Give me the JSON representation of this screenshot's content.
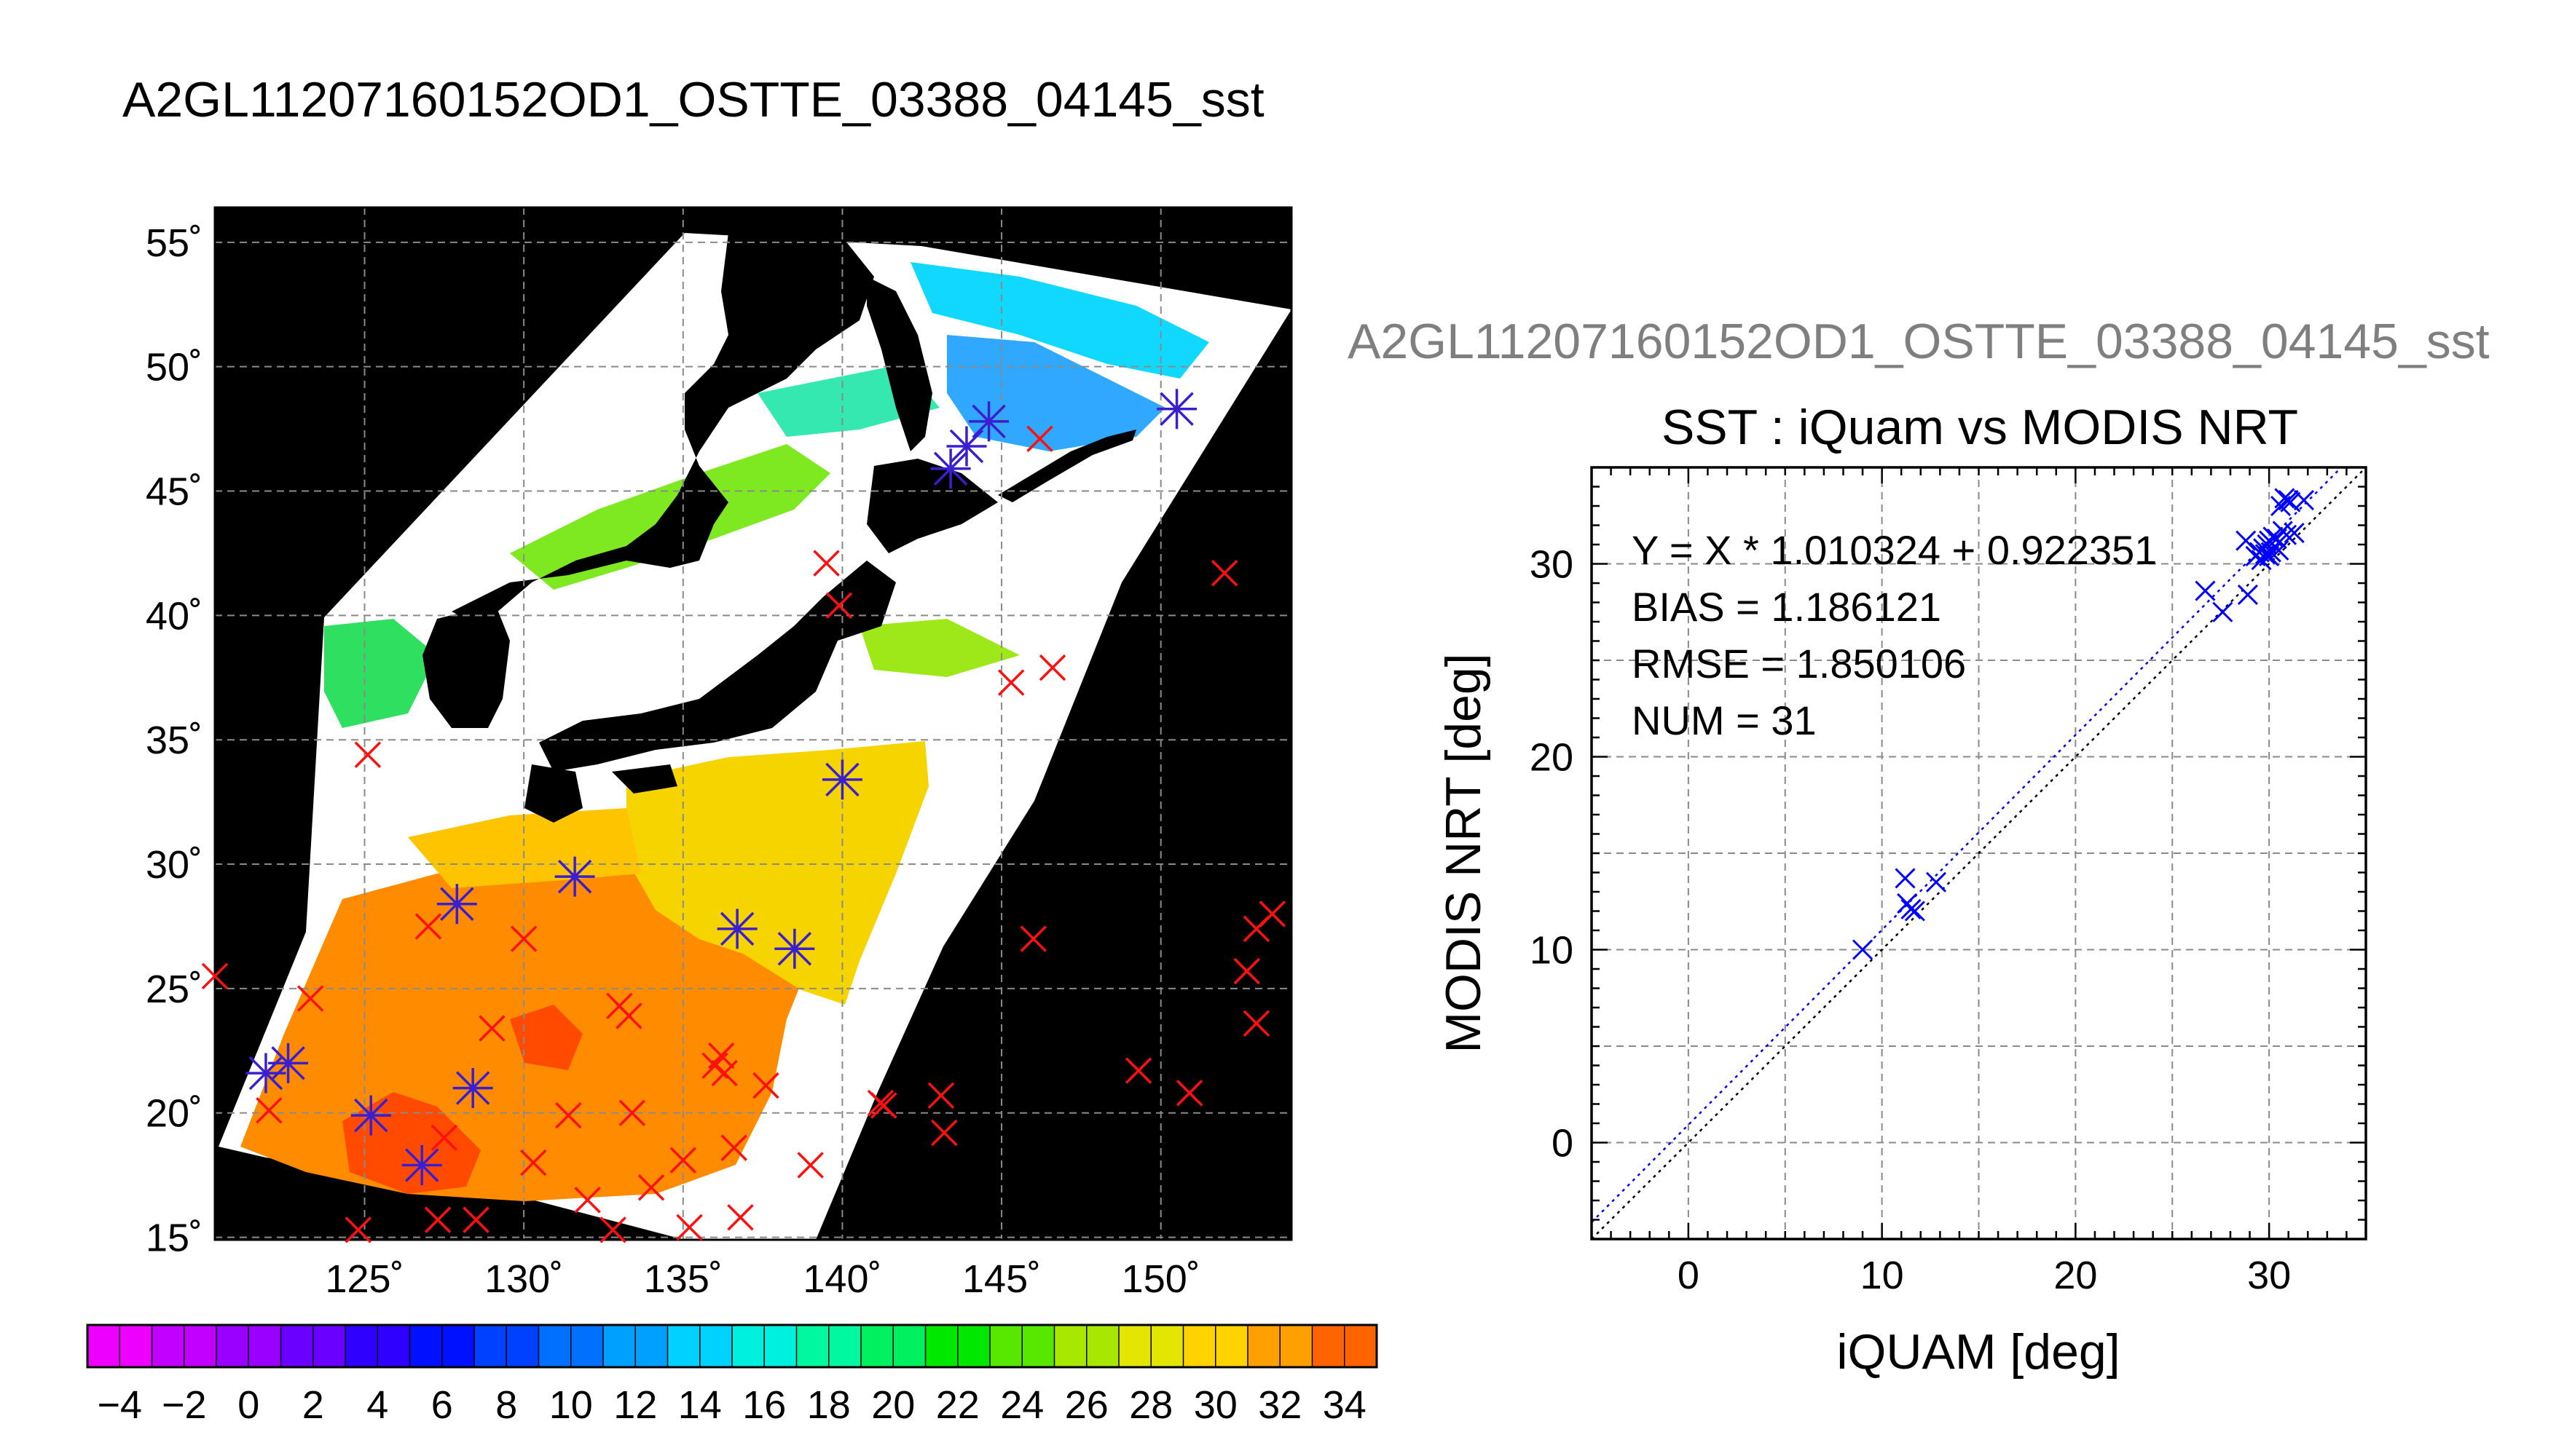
{
  "main_title": "A2GL11207160152OD1_OSTTE_03388_04145_sst",
  "sub_title": "A2GL11207160152OD1_OSTTE_03388_04145_sst",
  "chart_data": [
    {
      "type": "map",
      "title": "",
      "x_ticks": [
        "125˚",
        "130˚",
        "135˚",
        "140˚",
        "145˚",
        "150˚"
      ],
      "x_tick_values": [
        125,
        130,
        135,
        140,
        145,
        150
      ],
      "y_ticks": [
        "15˚",
        "20˚",
        "25˚",
        "30˚",
        "35˚",
        "40˚",
        "45˚",
        "50˚",
        "55˚"
      ],
      "y_tick_values": [
        15,
        20,
        25,
        30,
        35,
        40,
        45,
        50,
        55
      ],
      "xlim": [
        120.3,
        154.1
      ],
      "ylim": [
        14.9,
        56.4
      ],
      "grid": true,
      "colorbar": {
        "tick_labels": [
          "−4",
          "−2",
          "0",
          "2",
          "4",
          "6",
          "8",
          "10",
          "12",
          "14",
          "16",
          "18",
          "20",
          "22",
          "24",
          "26",
          "28",
          "30",
          "32",
          "34"
        ],
        "range": [
          -5,
          35
        ],
        "step": 2,
        "colors": [
          "#ee00ff",
          "#c200ff",
          "#9a00ff",
          "#6a00ff",
          "#3000ff",
          "#0011ff",
          "#0040ff",
          "#0070ff",
          "#00a0ff",
          "#00d2ff",
          "#00f0e0",
          "#00f8a0",
          "#00f060",
          "#00e800",
          "#58e800",
          "#a8e800",
          "#e2e600",
          "#ffd300",
          "#ffa000",
          "#ff6400",
          "#ff2a00"
        ]
      },
      "series": [
        {
          "name": "",
          "marker": "x",
          "color": "#ff1010",
          "points": [
            [
              120.3,
              25.5
            ],
            [
              122.0,
              20.1
            ],
            [
              123.3,
              24.6
            ],
            [
              125.1,
              34.4
            ],
            [
              124.8,
              15.3
            ],
            [
              127.0,
              27.5
            ],
            [
              127.3,
              15.7
            ],
            [
              127.5,
              19.0
            ],
            [
              128.5,
              15.7
            ],
            [
              129.0,
              23.4
            ],
            [
              130.0,
              27.0
            ],
            [
              130.3,
              18.0
            ],
            [
              131.4,
              19.9
            ],
            [
              132.0,
              16.5
            ],
            [
              132.8,
              15.3
            ],
            [
              133.0,
              24.3
            ],
            [
              133.3,
              23.9
            ],
            [
              133.4,
              20.0
            ],
            [
              134.0,
              17.0
            ],
            [
              135.0,
              18.1
            ],
            [
              135.2,
              15.4
            ],
            [
              136.0,
              21.9
            ],
            [
              136.2,
              22.3
            ],
            [
              136.3,
              21.6
            ],
            [
              136.6,
              18.6
            ],
            [
              136.8,
              15.8
            ],
            [
              137.6,
              21.1
            ],
            [
              139.0,
              17.9
            ],
            [
              139.5,
              42.1
            ],
            [
              139.9,
              40.4
            ],
            [
              141.2,
              20.4
            ],
            [
              141.3,
              20.3
            ],
            [
              143.1,
              20.7
            ],
            [
              143.2,
              19.2
            ],
            [
              145.3,
              37.3
            ],
            [
              146.0,
              27.0
            ],
            [
              146.2,
              47.1
            ],
            [
              146.6,
              37.9
            ],
            [
              149.3,
              21.7
            ],
            [
              150.9,
              20.8
            ],
            [
              152.0,
              41.7
            ],
            [
              152.7,
              25.7
            ],
            [
              153.0,
              23.6
            ],
            [
              153.0,
              27.4
            ],
            [
              153.5,
              28.0
            ]
          ]
        },
        {
          "name": "",
          "marker": "asterisk",
          "color": "#3a1fd0",
          "points": [
            [
              121.9,
              21.6
            ],
            [
              122.6,
              22.0
            ],
            [
              125.2,
              19.9
            ],
            [
              126.8,
              17.9
            ],
            [
              127.9,
              28.4
            ],
            [
              128.4,
              21.0
            ],
            [
              131.6,
              29.5
            ],
            [
              136.7,
              27.4
            ],
            [
              138.5,
              26.6
            ],
            [
              140.0,
              33.4
            ],
            [
              143.4,
              45.9
            ],
            [
              143.9,
              46.8
            ],
            [
              144.6,
              47.8
            ],
            [
              150.5,
              48.3
            ]
          ]
        }
      ]
    },
    {
      "type": "scatter",
      "title": "SST : iQuam vs MODIS NRT",
      "xlabel": "iQUAM [deg]",
      "ylabel": "MODIS NRT [deg]",
      "xlim": [
        -5,
        35
      ],
      "ylim": [
        -5,
        35
      ],
      "x_ticks": [
        0,
        10,
        20,
        30
      ],
      "y_ticks": [
        0,
        10,
        20,
        30
      ],
      "grid": true,
      "annotations": [
        "Y = X * 1.010324 + 0.922351",
        "BIAS = 1.186121",
        "RMSE = 1.850106",
        "NUM = 31"
      ],
      "fit": {
        "slope": 1.010324,
        "intercept": 0.922351,
        "color": "#0000ff"
      },
      "identity_line": {
        "color": "#000000"
      },
      "series": [
        {
          "name": "",
          "marker": "x",
          "color": "#0000ff",
          "x": [
            9.0,
            11.2,
            11.3,
            11.5,
            11.7,
            12.8,
            26.7,
            27.6,
            28.8,
            28.9,
            29.3,
            29.5,
            29.6,
            29.7,
            29.8,
            29.9,
            30.0,
            30.0,
            30.1,
            30.2,
            30.3,
            30.4,
            30.5,
            30.6,
            30.7,
            30.8,
            30.9,
            31.0,
            31.1,
            31.3,
            31.8
          ],
          "y": [
            10.0,
            13.7,
            12.4,
            12.1,
            12.0,
            13.5,
            28.6,
            27.5,
            31.2,
            28.4,
            30.4,
            30.6,
            30.2,
            30.8,
            30.5,
            31.0,
            30.4,
            31.2,
            30.6,
            31.4,
            30.9,
            31.3,
            30.7,
            33.0,
            31.7,
            33.4,
            31.5,
            33.3,
            33.2,
            31.6,
            33.3
          ]
        }
      ]
    }
  ]
}
